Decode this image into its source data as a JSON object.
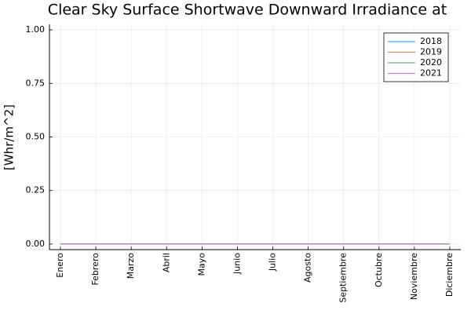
{
  "chart_data": {
    "type": "line",
    "title": "Clear Sky Surface Shortwave Downward Irradiance at",
    "y_label": "[Whr/m^2]",
    "categories": [
      "Enero",
      "Febrero",
      "Marzo",
      "Abril",
      "Mayo",
      "Junio",
      "Julio",
      "Agosto",
      "Septiembre",
      "Octubre",
      "Noviembre",
      "Diciembre"
    ],
    "series": [
      {
        "name": "2018",
        "color": "#009af9",
        "values": [
          0,
          0,
          0,
          0,
          0,
          0,
          0,
          0,
          0,
          0,
          0,
          0
        ]
      },
      {
        "name": "2019",
        "color": "#e26f46",
        "values": [
          0,
          0,
          0,
          0,
          0,
          0,
          0,
          0,
          0,
          0,
          0,
          0
        ]
      },
      {
        "name": "2020",
        "color": "#3da44d",
        "values": [
          0,
          0,
          0,
          0,
          0,
          0,
          0,
          0,
          0,
          0,
          0,
          0
        ]
      },
      {
        "name": "2021",
        "color": "#c271d2",
        "values": [
          0,
          0,
          0,
          0,
          0,
          0,
          0,
          0,
          0,
          0,
          0,
          0
        ]
      }
    ],
    "ylim": [
      -0.026,
      1.026
    ],
    "yticks": [
      {
        "value": 0,
        "label": "0.00"
      },
      {
        "value": 0.25,
        "label": "0.25"
      },
      {
        "value": 0.5,
        "label": "0.50"
      },
      {
        "value": 0.75,
        "label": "0.75"
      },
      {
        "value": 1,
        "label": "1.00"
      }
    ],
    "grid": true,
    "legend": "top-right"
  }
}
